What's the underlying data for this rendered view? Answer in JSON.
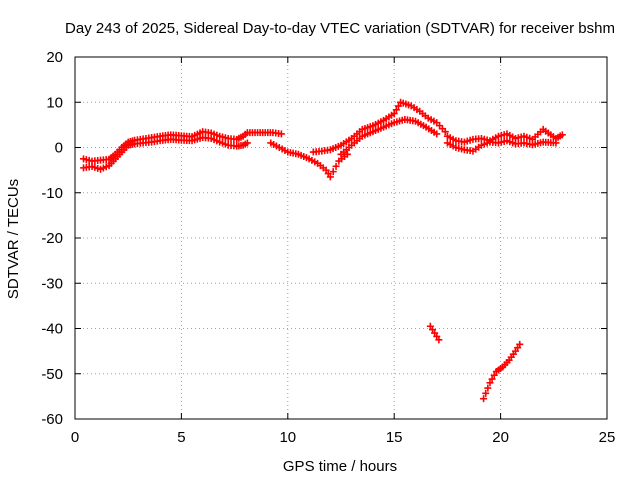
{
  "chart_data": {
    "type": "scatter",
    "title": "Day 243 of 2025, Sidereal Day-to-day VTEC variation (SDTVAR) for receiver bshm",
    "xlabel": "GPS time / hours",
    "ylabel": "SDTVAR / TECUs",
    "xlim": [
      0,
      25
    ],
    "ylim": [
      -60,
      20
    ],
    "xticks": [
      0,
      5,
      10,
      15,
      20,
      25
    ],
    "yticks": [
      -60,
      -50,
      -40,
      -30,
      -20,
      -10,
      0,
      10,
      20
    ],
    "grid": true,
    "marker": "+",
    "series_color": "#ff0000",
    "series": [
      {
        "name": "main-upper",
        "x": [
          0.4,
          0.8,
          1.2,
          1.6,
          1.9,
          2.2,
          2.5,
          2.8,
          3.2,
          3.6,
          4.0,
          4.5,
          5.0,
          5.5,
          6.0,
          6.4,
          6.8,
          7.2,
          7.6,
          7.9,
          8.1,
          9.3,
          9.7
        ],
        "y": [
          -2.5,
          -3.0,
          -2.8,
          -2.6,
          -1.5,
          0.0,
          1.2,
          1.6,
          1.9,
          2.2,
          2.5,
          2.8,
          2.6,
          2.4,
          3.5,
          3.2,
          2.5,
          2.0,
          1.8,
          2.5,
          3.3,
          3.3,
          3.0
        ]
      },
      {
        "name": "main-lower",
        "x": [
          0.4,
          0.8,
          1.2,
          1.6,
          1.9,
          2.2,
          2.5,
          2.8,
          3.2,
          3.6,
          4.0,
          4.5,
          5.0,
          5.5,
          6.0,
          6.4,
          6.8,
          7.2,
          7.6,
          7.9,
          8.1
        ],
        "y": [
          -4.5,
          -4.2,
          -4.8,
          -4.0,
          -2.5,
          -1.0,
          0.5,
          0.8,
          1.0,
          1.2,
          1.5,
          1.8,
          1.6,
          1.5,
          2.2,
          2.0,
          1.2,
          0.5,
          0.3,
          0.5,
          1.0
        ]
      },
      {
        "name": "dip-segment",
        "x": [
          9.2,
          9.6,
          10.0,
          10.5,
          11.0,
          11.4,
          11.8,
          12.0,
          12.4,
          12.8
        ],
        "y": [
          1.0,
          0.0,
          -1.0,
          -1.5,
          -2.5,
          -3.5,
          -5.0,
          -6.5,
          -3.0,
          -1.5
        ]
      },
      {
        "name": "rise-segment",
        "x": [
          11.2,
          11.6,
          12.0,
          12.5,
          13.0,
          13.5,
          14.0,
          14.5,
          15.0,
          15.3,
          15.8,
          16.2,
          16.6,
          17.0,
          17.4
        ],
        "y": [
          -1.0,
          -0.8,
          -0.5,
          0.5,
          2.0,
          4.0,
          4.8,
          6.0,
          7.5,
          10.0,
          9.2,
          8.0,
          6.5,
          5.5,
          3.5
        ]
      },
      {
        "name": "rise-lower",
        "x": [
          12.5,
          13.0,
          13.5,
          14.0,
          14.5,
          15.0,
          15.5,
          16.0,
          16.5,
          17.0
        ],
        "y": [
          -1.5,
          0.5,
          2.5,
          3.5,
          4.5,
          5.5,
          6.2,
          5.8,
          4.5,
          3.0
        ]
      },
      {
        "name": "evening-upper",
        "x": [
          17.5,
          17.9,
          18.3,
          18.7,
          19.1,
          19.5,
          19.9,
          20.3,
          20.7,
          21.1,
          21.5,
          22.0,
          22.6,
          22.9
        ],
        "y": [
          2.5,
          1.5,
          1.2,
          1.8,
          2.0,
          1.5,
          2.5,
          3.0,
          2.0,
          2.5,
          1.8,
          4.0,
          2.0,
          2.8
        ]
      },
      {
        "name": "evening-lower",
        "x": [
          17.5,
          17.9,
          18.3,
          18.7,
          19.1,
          19.5,
          19.9,
          20.3,
          20.7,
          21.1,
          21.5,
          22.0,
          22.6
        ],
        "y": [
          1.0,
          0.0,
          -0.5,
          -0.8,
          0.5,
          1.2,
          1.0,
          1.5,
          0.8,
          1.0,
          0.6,
          1.2,
          1.0
        ]
      },
      {
        "name": "outlier-short",
        "x": [
          16.7,
          16.9,
          17.1
        ],
        "y": [
          -39.5,
          -41.0,
          -42.5
        ]
      },
      {
        "name": "outlier-long",
        "x": [
          19.2,
          19.5,
          19.8,
          20.1,
          20.4,
          20.7,
          20.9
        ],
        "y": [
          -55.5,
          -52.0,
          -49.5,
          -48.5,
          -47.0,
          -45.0,
          -43.5
        ]
      }
    ]
  }
}
